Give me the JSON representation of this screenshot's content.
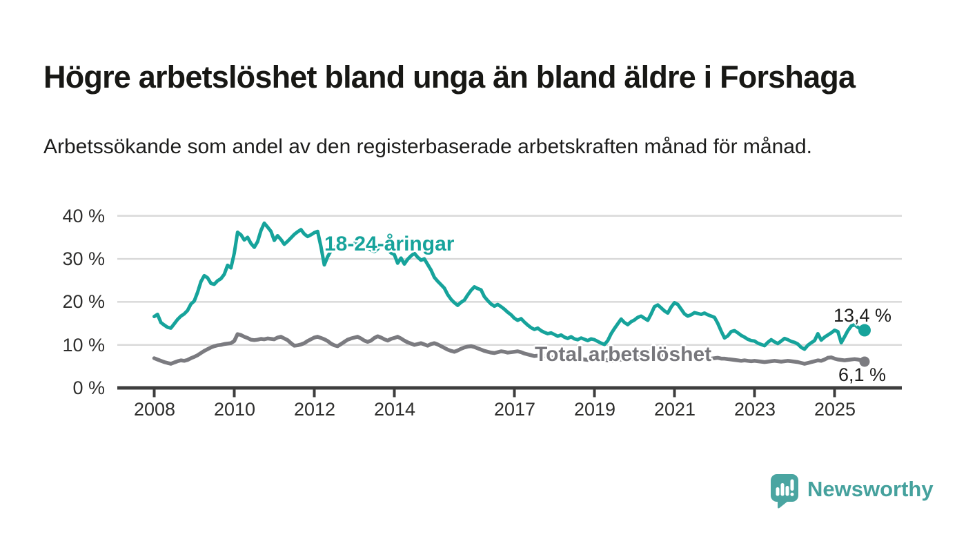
{
  "header": {
    "title": "Högre arbetslöshet bland unga än bland äldre i Forshaga",
    "subtitle": "Arbetssökande som andel av den registerbaserade arbetskraften månad för månad."
  },
  "chart_data": {
    "type": "line",
    "title": "Högre arbetslöshet bland unga än bland äldre i Forshaga",
    "x_start_year": 2008,
    "x_start_month": 1,
    "x_step_months": 1,
    "ylim": [
      0,
      40
    ],
    "grid": "horizontal",
    "colors": {
      "grid": "#d9d9d9",
      "axis": "#3e3e3e"
    },
    "y_ticks": [
      {
        "value": 40,
        "label": "40 %"
      },
      {
        "value": 30,
        "label": "30 %"
      },
      {
        "value": 20,
        "label": "20 %"
      },
      {
        "value": 10,
        "label": "10 %"
      },
      {
        "value": 0,
        "label": "0 %"
      }
    ],
    "x_ticks": [
      {
        "year": 2008,
        "label": "2008"
      },
      {
        "year": 2010,
        "label": "2010"
      },
      {
        "year": 2012,
        "label": "2012"
      },
      {
        "year": 2014,
        "label": "2014"
      },
      {
        "year": 2017,
        "label": "2017"
      },
      {
        "year": 2019,
        "label": "2019"
      },
      {
        "year": 2021,
        "label": "2021"
      },
      {
        "year": 2023,
        "label": "2023"
      },
      {
        "year": 2025,
        "label": "2025"
      }
    ],
    "series": [
      {
        "name": "18-24-aringar",
        "label_text": "18-24-åringar",
        "color": "#16a39b",
        "end_value": 13.4,
        "end_value_label": "13,4 %",
        "values": [
          16.6,
          17.1,
          15.2,
          14.6,
          14.1,
          13.9,
          14.9,
          15.9,
          16.7,
          17.2,
          18.0,
          19.5,
          20.2,
          22.2,
          24.7,
          26.1,
          25.6,
          24.3,
          24.1,
          24.9,
          25.4,
          26.4,
          28.5,
          27.9,
          31.3,
          36.2,
          35.6,
          34.4,
          35.0,
          33.6,
          32.7,
          34.0,
          36.6,
          38.3,
          37.4,
          36.4,
          34.3,
          35.4,
          34.5,
          33.4,
          34.1,
          34.9,
          35.7,
          36.3,
          36.8,
          35.8,
          35.2,
          35.6,
          36.1,
          36.4,
          32.8,
          28.6,
          30.5,
          31.9,
          32.7,
          33.2,
          32.8,
          32.3,
          32.8,
          33.3,
          33.6,
          34.2,
          33.7,
          33.1,
          32.6,
          32.1,
          31.7,
          32.3,
          33.6,
          33.0,
          32.2,
          31.4,
          31.0,
          29.0,
          30.2,
          28.8,
          29.9,
          30.7,
          31.3,
          30.4,
          29.7,
          30.0,
          28.7,
          27.4,
          25.7,
          24.8,
          24.0,
          23.2,
          21.7,
          20.6,
          19.8,
          19.2,
          19.9,
          20.4,
          21.6,
          22.7,
          23.5,
          23.1,
          22.8,
          21.2,
          20.3,
          19.5,
          19.0,
          19.4,
          18.9,
          18.3,
          17.6,
          17.0,
          16.2,
          15.7,
          16.1,
          15.3,
          14.6,
          14.0,
          13.6,
          13.9,
          13.3,
          12.9,
          12.6,
          12.8,
          12.4,
          12.0,
          12.3,
          11.8,
          11.5,
          11.9,
          11.4,
          11.2,
          11.6,
          11.3,
          11.0,
          11.4,
          11.2,
          10.8,
          10.4,
          10.1,
          11.0,
          12.6,
          13.8,
          14.9,
          16.0,
          15.2,
          14.7,
          15.4,
          15.8,
          16.4,
          16.7,
          16.2,
          15.7,
          17.2,
          18.9,
          19.3,
          18.6,
          17.9,
          17.4,
          18.8,
          19.8,
          19.4,
          18.3,
          17.2,
          16.7,
          17.0,
          17.5,
          17.3,
          17.1,
          17.4,
          17.0,
          16.7,
          16.4,
          15.0,
          13.2,
          11.6,
          12.1,
          13.1,
          13.3,
          12.8,
          12.2,
          11.8,
          11.3,
          11.0,
          10.9,
          10.4,
          10.1,
          9.8,
          10.6,
          11.2,
          10.7,
          10.3,
          10.9,
          11.5,
          11.2,
          10.8,
          10.6,
          10.2,
          9.4,
          9.0,
          9.9,
          10.5,
          11.0,
          12.6,
          11.1,
          11.8,
          12.3,
          12.8,
          13.4,
          13.1,
          10.5,
          11.9,
          13.3,
          14.4,
          14.7,
          14.1,
          13.6,
          13.4
        ]
      },
      {
        "name": "Total arbetslöshet",
        "label_text": "Total arbetslöshet",
        "color": "#7b7b80",
        "end_value": 6.1,
        "end_value_label": "6,1 %",
        "values": [
          6.9,
          6.6,
          6.3,
          6.0,
          5.8,
          5.6,
          5.9,
          6.2,
          6.4,
          6.3,
          6.5,
          6.9,
          7.2,
          7.6,
          8.1,
          8.6,
          9.0,
          9.4,
          9.7,
          9.9,
          10.0,
          10.2,
          10.3,
          10.4,
          10.9,
          12.5,
          12.3,
          11.9,
          11.6,
          11.2,
          11.1,
          11.2,
          11.4,
          11.3,
          11.5,
          11.4,
          11.3,
          11.7,
          11.9,
          11.5,
          11.1,
          10.4,
          9.8,
          9.9,
          10.1,
          10.4,
          10.9,
          11.3,
          11.7,
          11.9,
          11.6,
          11.3,
          10.9,
          10.3,
          9.9,
          9.7,
          10.2,
          10.7,
          11.2,
          11.5,
          11.7,
          11.9,
          11.5,
          11.0,
          10.7,
          11.0,
          11.6,
          12.0,
          11.7,
          11.3,
          11.0,
          11.4,
          11.6,
          11.9,
          11.5,
          11.0,
          10.6,
          10.3,
          10.0,
          10.2,
          10.4,
          10.1,
          9.8,
          10.2,
          10.4,
          10.1,
          9.7,
          9.3,
          8.9,
          8.6,
          8.4,
          8.7,
          9.1,
          9.4,
          9.6,
          9.7,
          9.5,
          9.2,
          8.9,
          8.6,
          8.4,
          8.2,
          8.1,
          8.3,
          8.5,
          8.4,
          8.2,
          8.3,
          8.4,
          8.5,
          8.3,
          8.0,
          7.8,
          7.6,
          7.4,
          7.5,
          7.6,
          7.4,
          7.2,
          7.1,
          7.0,
          7.1,
          7.2,
          7.0,
          6.8,
          6.7,
          6.6,
          6.7,
          6.8,
          6.6,
          6.5,
          6.6,
          6.7,
          6.8,
          6.7,
          6.5,
          6.4,
          6.3,
          6.4,
          6.5,
          6.6,
          6.5,
          6.6,
          6.7,
          6.9,
          7.2,
          7.8,
          8.3,
          8.5,
          8.4,
          8.2,
          8.0,
          7.8,
          7.6,
          7.4,
          7.3,
          7.4,
          7.5,
          7.3,
          7.1,
          6.9,
          6.8,
          6.7,
          6.8,
          6.9,
          6.8,
          6.7,
          6.8,
          6.9,
          7.0,
          6.8,
          6.8,
          6.7,
          6.6,
          6.5,
          6.4,
          6.3,
          6.4,
          6.3,
          6.2,
          6.3,
          6.2,
          6.1,
          6.0,
          6.1,
          6.2,
          6.3,
          6.2,
          6.1,
          6.2,
          6.3,
          6.2,
          6.1,
          6.0,
          5.8,
          5.6,
          5.8,
          6.0,
          6.2,
          6.4,
          6.3,
          6.6,
          7.0,
          7.1,
          6.8,
          6.6,
          6.5,
          6.4,
          6.5,
          6.6,
          6.7,
          6.6,
          6.4,
          6.1
        ]
      }
    ]
  },
  "footer": {
    "brand": "Newsworthy",
    "brand_color": "#45a19d",
    "logo_color": "#4aa5a1"
  }
}
